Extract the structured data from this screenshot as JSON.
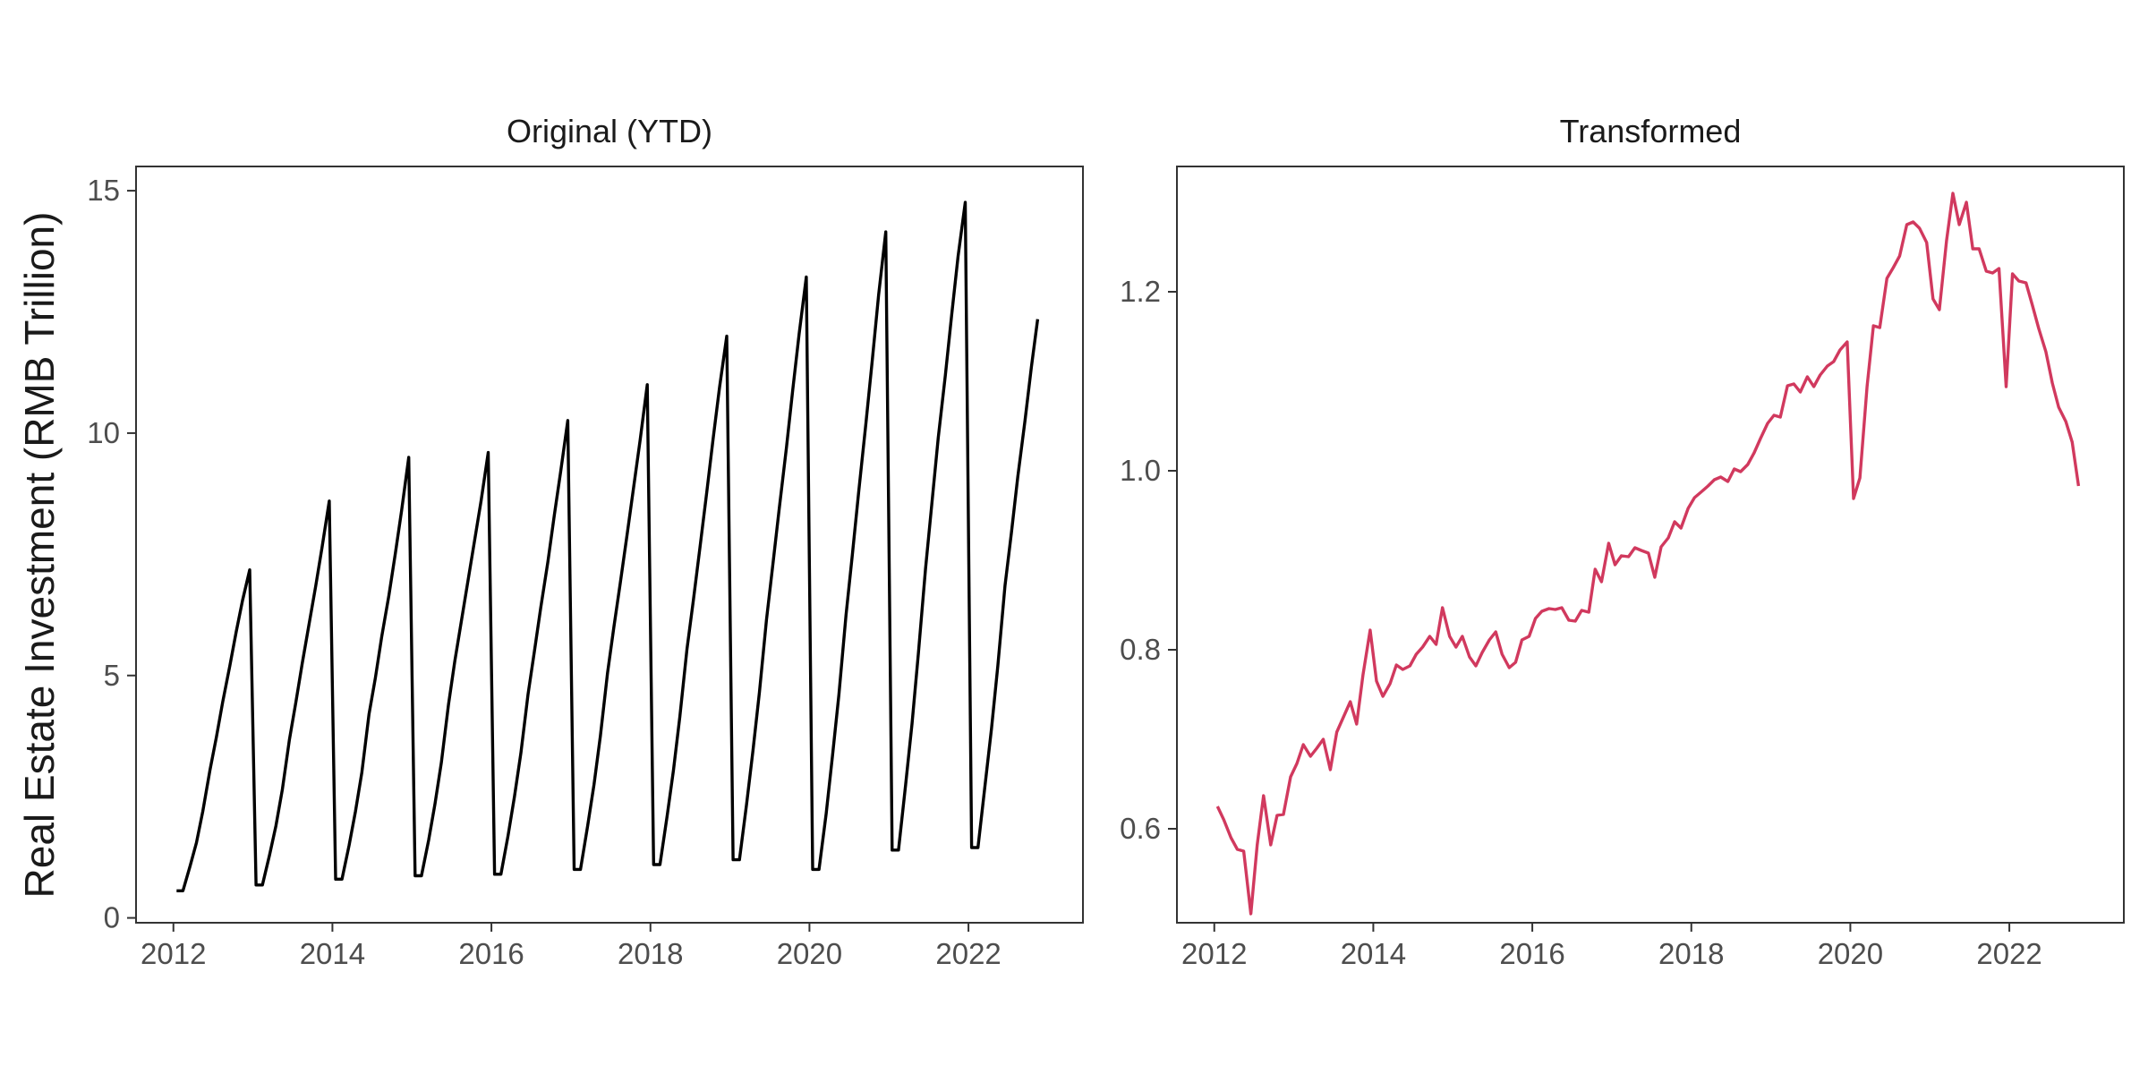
{
  "chart_data": [
    {
      "type": "line",
      "title": "Original (YTD)",
      "xlabel": "",
      "ylabel": "Real Estate Investment (RMB Trillion)",
      "xlim": [
        2011.53,
        2023.44
      ],
      "ylim": [
        -0.1,
        15.5
      ],
      "x_ticks": [
        2012,
        2014,
        2016,
        2018,
        2020,
        2022
      ],
      "x_tick_labels": [
        "2012",
        "2014",
        "2016",
        "2018",
        "2020",
        "2022"
      ],
      "y_ticks": [
        0,
        5,
        10,
        15
      ],
      "y_tick_labels": [
        "0",
        "5",
        "10",
        "15"
      ],
      "grid": false,
      "series": [
        {
          "color": "#000000",
          "x": [
            2012.04,
            2012.12,
            2012.21,
            2012.29,
            2012.37,
            2012.46,
            2012.54,
            2012.62,
            2012.71,
            2012.79,
            2012.87,
            2012.96,
            2013.04,
            2013.12,
            2013.21,
            2013.29,
            2013.37,
            2013.46,
            2013.54,
            2013.62,
            2013.71,
            2013.79,
            2013.87,
            2013.96,
            2014.04,
            2014.12,
            2014.21,
            2014.29,
            2014.37,
            2014.46,
            2014.54,
            2014.62,
            2014.71,
            2014.79,
            2014.87,
            2014.96,
            2015.04,
            2015.12,
            2015.21,
            2015.29,
            2015.37,
            2015.46,
            2015.54,
            2015.62,
            2015.71,
            2015.79,
            2015.87,
            2015.96,
            2016.04,
            2016.12,
            2016.21,
            2016.29,
            2016.37,
            2016.46,
            2016.54,
            2016.62,
            2016.71,
            2016.79,
            2016.87,
            2016.96,
            2017.04,
            2017.12,
            2017.21,
            2017.29,
            2017.37,
            2017.46,
            2017.54,
            2017.62,
            2017.71,
            2017.79,
            2017.87,
            2017.96,
            2018.04,
            2018.12,
            2018.21,
            2018.29,
            2018.37,
            2018.46,
            2018.54,
            2018.62,
            2018.71,
            2018.79,
            2018.87,
            2018.96,
            2019.04,
            2019.12,
            2019.21,
            2019.29,
            2019.37,
            2019.46,
            2019.54,
            2019.62,
            2019.71,
            2019.79,
            2019.87,
            2019.96,
            2020.04,
            2020.12,
            2020.21,
            2020.29,
            2020.37,
            2020.46,
            2020.54,
            2020.62,
            2020.71,
            2020.79,
            2020.87,
            2020.96,
            2021.04,
            2021.12,
            2021.21,
            2021.29,
            2021.37,
            2021.46,
            2021.54,
            2021.62,
            2021.71,
            2021.79,
            2021.87,
            2021.96,
            2022.04,
            2022.12,
            2022.21,
            2022.29,
            2022.37,
            2022.46,
            2022.54,
            2022.62,
            2022.71,
            2022.79,
            2022.87
          ],
          "y": [
            0.56,
            0.56,
            1.07,
            1.55,
            2.2,
            3.05,
            3.72,
            4.45,
            5.2,
            5.9,
            6.55,
            7.18,
            0.68,
            0.68,
            1.3,
            1.9,
            2.65,
            3.68,
            4.45,
            5.25,
            6.1,
            6.85,
            7.65,
            8.6,
            0.8,
            0.8,
            1.5,
            2.2,
            3.0,
            4.2,
            4.95,
            5.8,
            6.65,
            7.5,
            8.4,
            9.5,
            0.87,
            0.87,
            1.6,
            2.35,
            3.2,
            4.4,
            5.3,
            6.1,
            7.0,
            7.8,
            8.6,
            9.6,
            0.9,
            0.9,
            1.7,
            2.5,
            3.4,
            4.6,
            5.5,
            6.4,
            7.35,
            8.3,
            9.2,
            10.26,
            1.0,
            1.0,
            1.9,
            2.75,
            3.75,
            5.05,
            6.0,
            6.9,
            7.95,
            8.9,
            9.85,
            11.0,
            1.1,
            1.1,
            2.1,
            3.05,
            4.15,
            5.55,
            6.55,
            7.6,
            8.8,
            9.9,
            10.95,
            12.0,
            1.2,
            1.2,
            2.35,
            3.45,
            4.65,
            6.15,
            7.3,
            8.45,
            9.7,
            10.9,
            12.05,
            13.22,
            1.0,
            1.0,
            2.15,
            3.35,
            4.6,
            6.25,
            7.5,
            8.8,
            10.2,
            11.5,
            12.85,
            14.15,
            1.4,
            1.4,
            2.75,
            4.0,
            5.45,
            7.2,
            8.55,
            9.9,
            11.2,
            12.45,
            13.65,
            14.76,
            1.45,
            1.45,
            2.75,
            3.9,
            5.2,
            6.85,
            7.95,
            9.1,
            10.25,
            11.35,
            12.35
          ]
        }
      ]
    },
    {
      "type": "line",
      "title": "Transformed",
      "xlabel": "",
      "ylabel": "",
      "xlim": [
        2011.53,
        2023.44
      ],
      "ylim": [
        0.495,
        1.34
      ],
      "x_ticks": [
        2012,
        2014,
        2016,
        2018,
        2020,
        2022
      ],
      "x_tick_labels": [
        "2012",
        "2014",
        "2016",
        "2018",
        "2020",
        "2022"
      ],
      "y_ticks": [
        0.6,
        0.8,
        1.0,
        1.2
      ],
      "y_tick_labels": [
        "0.6",
        "0.8",
        "1.0",
        "1.2"
      ],
      "grid": false,
      "series": [
        {
          "color": "#D1395E",
          "x": [
            2012.04,
            2012.12,
            2012.21,
            2012.29,
            2012.37,
            2012.46,
            2012.54,
            2012.62,
            2012.71,
            2012.79,
            2012.87,
            2012.96,
            2013.04,
            2013.12,
            2013.21,
            2013.29,
            2013.37,
            2013.46,
            2013.54,
            2013.62,
            2013.71,
            2013.79,
            2013.87,
            2013.96,
            2014.04,
            2014.12,
            2014.21,
            2014.29,
            2014.37,
            2014.46,
            2014.54,
            2014.62,
            2014.71,
            2014.79,
            2014.87,
            2014.96,
            2015.04,
            2015.12,
            2015.21,
            2015.29,
            2015.37,
            2015.46,
            2015.54,
            2015.62,
            2015.71,
            2015.79,
            2015.87,
            2015.96,
            2016.04,
            2016.12,
            2016.21,
            2016.29,
            2016.37,
            2016.46,
            2016.54,
            2016.62,
            2016.71,
            2016.79,
            2016.87,
            2016.96,
            2017.04,
            2017.12,
            2017.21,
            2017.29,
            2017.37,
            2017.46,
            2017.54,
            2017.62,
            2017.71,
            2017.79,
            2017.87,
            2017.96,
            2018.04,
            2018.12,
            2018.21,
            2018.29,
            2018.37,
            2018.46,
            2018.54,
            2018.62,
            2018.71,
            2018.79,
            2018.87,
            2018.96,
            2019.04,
            2019.12,
            2019.21,
            2019.29,
            2019.37,
            2019.46,
            2019.54,
            2019.62,
            2019.71,
            2019.79,
            2019.87,
            2019.96,
            2020.04,
            2020.12,
            2020.21,
            2020.29,
            2020.37,
            2020.46,
            2020.54,
            2020.62,
            2020.71,
            2020.79,
            2020.87,
            2020.96,
            2021.04,
            2021.12,
            2021.21,
            2021.29,
            2021.37,
            2021.46,
            2021.54,
            2021.62,
            2021.71,
            2021.79,
            2021.87,
            2021.96,
            2022.04,
            2022.12,
            2022.21,
            2022.29,
            2022.37,
            2022.46,
            2022.54,
            2022.62,
            2022.71,
            2022.79,
            2022.87
          ],
          "y": [
            0.625,
            0.61,
            0.59,
            0.577,
            0.575,
            0.505,
            0.582,
            0.637,
            0.582,
            0.615,
            0.616,
            0.658,
            0.673,
            0.694,
            0.681,
            0.69,
            0.7,
            0.666,
            0.708,
            0.724,
            0.742,
            0.717,
            0.772,
            0.822,
            0.765,
            0.748,
            0.762,
            0.783,
            0.778,
            0.782,
            0.795,
            0.803,
            0.815,
            0.806,
            0.847,
            0.815,
            0.803,
            0.815,
            0.792,
            0.782,
            0.797,
            0.811,
            0.82,
            0.795,
            0.78,
            0.786,
            0.811,
            0.815,
            0.835,
            0.843,
            0.846,
            0.845,
            0.847,
            0.833,
            0.832,
            0.844,
            0.842,
            0.89,
            0.876,
            0.919,
            0.895,
            0.905,
            0.904,
            0.914,
            0.911,
            0.908,
            0.881,
            0.915,
            0.925,
            0.943,
            0.936,
            0.958,
            0.97,
            0.976,
            0.983,
            0.99,
            0.993,
            0.988,
            1.002,
            0.999,
            1.007,
            1.02,
            1.036,
            1.053,
            1.062,
            1.06,
            1.095,
            1.097,
            1.088,
            1.105,
            1.094,
            1.107,
            1.117,
            1.122,
            1.135,
            1.144,
            0.969,
            0.992,
            1.094,
            1.162,
            1.16,
            1.215,
            1.227,
            1.24,
            1.275,
            1.278,
            1.271,
            1.255,
            1.192,
            1.18,
            1.257,
            1.31,
            1.275,
            1.3,
            1.248,
            1.248,
            1.223,
            1.221,
            1.226,
            1.094,
            1.22,
            1.212,
            1.21,
            1.185,
            1.159,
            1.133,
            1.098,
            1.071,
            1.055,
            1.032,
            0.983
          ]
        }
      ]
    }
  ]
}
